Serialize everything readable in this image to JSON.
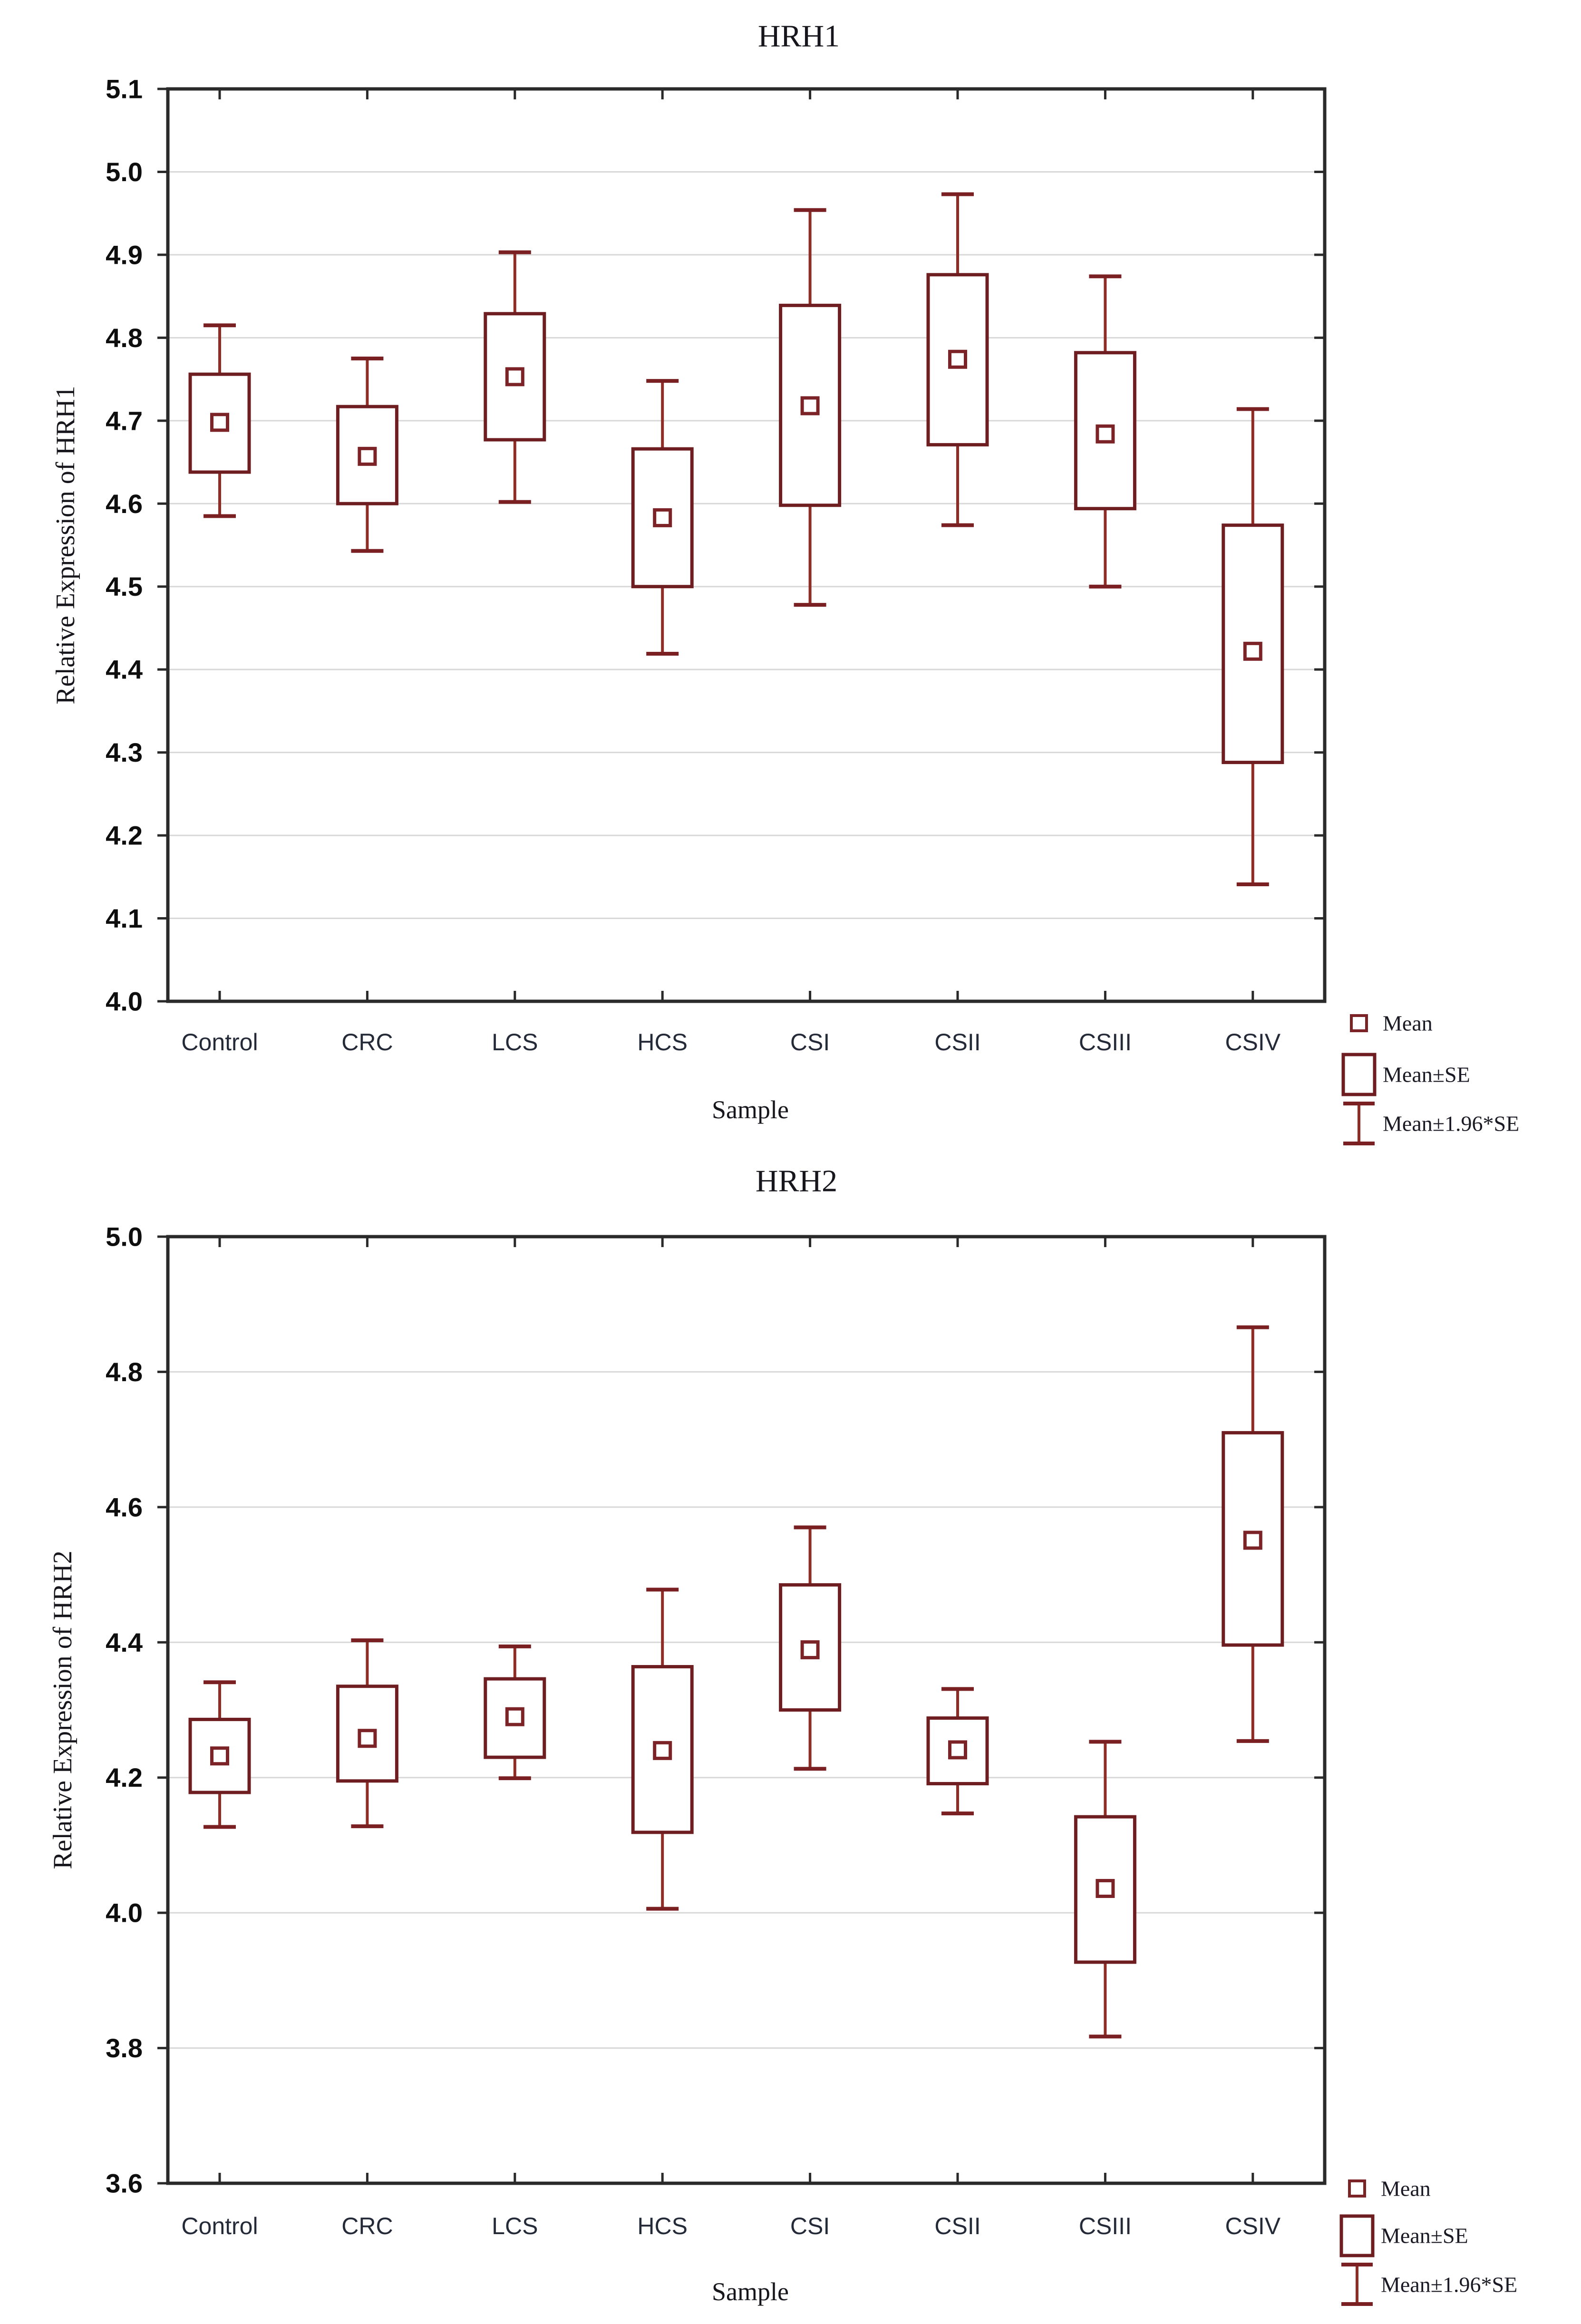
{
  "figure": {
    "description": "Two stacked Statistica-style box-and-whisker plots of relative gene expression",
    "background_color": "#ffffff"
  },
  "style": {
    "box_color": "#6e1e21",
    "whisker_color": "#8d2d26",
    "cap_color": "#7a2023",
    "mean_marker_color": "#7b2326",
    "grid_color": "#d8d8d8",
    "axis_color": "#2a2a2a",
    "title_color": "#16161c",
    "ytick_label_color": "#0e0e0e",
    "xtick_label_color": "#242a38",
    "legend_text_color": "#1a1a24"
  },
  "chart_data": [
    {
      "type": "box",
      "id": "hrh1",
      "title": "HRH1",
      "ylabel": "Relative Expression of HRH1",
      "xlabel": "Sample",
      "ylim": [
        4.0,
        5.1
      ],
      "ytick_step": 0.1,
      "ytick_labels": [
        "5.1",
        "5.0",
        "4.9",
        "4.8",
        "4.7",
        "4.6",
        "4.5",
        "4.4",
        "4.3",
        "4.2",
        "4.1",
        "4.0"
      ],
      "grid": "horizontal",
      "legend_position": "bottom-right-outside",
      "legend": [
        "Mean",
        "Mean±SE",
        "Mean±1.96*SE"
      ],
      "categories": [
        "Control",
        "CRC",
        "LCS",
        "HCS",
        "CSI",
        "CSII",
        "CSIII",
        "CSIV"
      ],
      "series": [
        {
          "sample": "Control",
          "mean": 4.698,
          "se_low": 4.638,
          "se_high": 4.756,
          "ci_low": 4.585,
          "ci_high": 4.815
        },
        {
          "sample": "CRC",
          "mean": 4.657,
          "se_low": 4.6,
          "se_high": 4.717,
          "ci_low": 4.543,
          "ci_high": 4.775
        },
        {
          "sample": "LCS",
          "mean": 4.753,
          "se_low": 4.677,
          "se_high": 4.829,
          "ci_low": 4.602,
          "ci_high": 4.903
        },
        {
          "sample": "HCS",
          "mean": 4.583,
          "se_low": 4.5,
          "se_high": 4.666,
          "ci_low": 4.419,
          "ci_high": 4.748
        },
        {
          "sample": "CSI",
          "mean": 4.718,
          "se_low": 4.598,
          "se_high": 4.839,
          "ci_low": 4.478,
          "ci_high": 4.954
        },
        {
          "sample": "CSII",
          "mean": 4.774,
          "se_low": 4.671,
          "se_high": 4.876,
          "ci_low": 4.574,
          "ci_high": 4.973
        },
        {
          "sample": "CSIII",
          "mean": 4.684,
          "se_low": 4.594,
          "se_high": 4.782,
          "ci_low": 4.5,
          "ci_high": 4.874
        },
        {
          "sample": "CSIV",
          "mean": 4.422,
          "se_low": 4.288,
          "se_high": 4.574,
          "ci_low": 4.141,
          "ci_high": 4.714
        }
      ]
    },
    {
      "type": "box",
      "id": "hrh2",
      "title": "HRH2",
      "ylabel": "Relative Expression of HRH2",
      "xlabel": "Sample",
      "ylim": [
        3.6,
        5.0
      ],
      "ytick_step": 0.2,
      "ytick_labels": [
        "5.0",
        "4.8",
        "4.6",
        "4.4",
        "4.2",
        "4.0",
        "3.8",
        "3.6"
      ],
      "grid": "horizontal",
      "legend_position": "bottom-right-outside",
      "legend": [
        "Mean",
        "Mean±SE",
        "Mean±1.96*SE"
      ],
      "categories": [
        "Control",
        "CRC",
        "LCS",
        "HCS",
        "CSI",
        "CSII",
        "CSIII",
        "CSIV"
      ],
      "series": [
        {
          "sample": "Control",
          "mean": 4.232,
          "se_low": 4.178,
          "se_high": 4.286,
          "ci_low": 4.127,
          "ci_high": 4.341
        },
        {
          "sample": "CRC",
          "mean": 4.258,
          "se_low": 4.195,
          "se_high": 4.335,
          "ci_low": 4.128,
          "ci_high": 4.403
        },
        {
          "sample": "LCS",
          "mean": 4.29,
          "se_low": 4.23,
          "se_high": 4.346,
          "ci_low": 4.199,
          "ci_high": 4.394
        },
        {
          "sample": "HCS",
          "mean": 4.24,
          "se_low": 4.119,
          "se_high": 4.364,
          "ci_low": 4.006,
          "ci_high": 4.478
        },
        {
          "sample": "CSI",
          "mean": 4.389,
          "se_low": 4.3,
          "se_high": 4.485,
          "ci_low": 4.213,
          "ci_high": 4.57
        },
        {
          "sample": "CSII",
          "mean": 4.241,
          "se_low": 4.191,
          "se_high": 4.288,
          "ci_low": 4.147,
          "ci_high": 4.331
        },
        {
          "sample": "CSIII",
          "mean": 4.036,
          "se_low": 3.927,
          "se_high": 4.142,
          "ci_low": 3.817,
          "ci_high": 4.253
        },
        {
          "sample": "CSIV",
          "mean": 4.551,
          "se_low": 4.396,
          "se_high": 4.71,
          "ci_low": 4.254,
          "ci_high": 4.866
        }
      ]
    }
  ]
}
